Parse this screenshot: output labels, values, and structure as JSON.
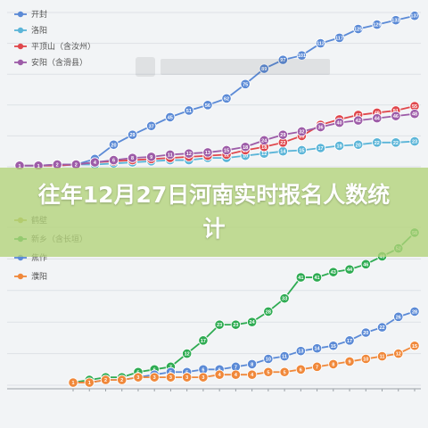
{
  "banner": {
    "title": "往年12月27日河南实时报名人数统计"
  },
  "chart_data": [
    {
      "type": "line",
      "title": "",
      "xlabel": "",
      "ylabel": "",
      "legend": "top-left",
      "grid": true,
      "ylim": [
        0,
        140
      ],
      "x_tick_labels": [],
      "series": [
        {
          "name": "开封",
          "color": "#5b8ad6",
          "labels_visible": true,
          "values": [
            1,
            1,
            2,
            2,
            7,
            20,
            29,
            37,
            45,
            51,
            56,
            62,
            75,
            89,
            97,
            101,
            112,
            117,
            125,
            129,
            133,
            137
          ]
        },
        {
          "name": "洛阳",
          "color": "#5bb5d8",
          "labels_visible": true,
          "values": [
            1,
            1,
            1,
            2,
            2,
            3,
            4,
            5,
            6,
            6,
            8,
            8,
            10,
            12,
            14,
            15,
            17,
            19,
            20,
            22,
            22,
            23
          ]
        },
        {
          "name": "平顶山（含汝州）",
          "color": "#e0474c",
          "labels_visible": true,
          "values": [
            1,
            1,
            1,
            2,
            4,
            5,
            6,
            7,
            8,
            9,
            10,
            11,
            15,
            18,
            22,
            28,
            38,
            43,
            47,
            49,
            51,
            55
          ]
        },
        {
          "name": "安阳（含滑县）",
          "color": "#9d5ca8",
          "labels_visible": true,
          "values": [
            1,
            1,
            2,
            2,
            4,
            6,
            8,
            9,
            11,
            12,
            13,
            15,
            18,
            24,
            29,
            32,
            36,
            40,
            42,
            44,
            46,
            48
          ]
        }
      ]
    },
    {
      "type": "line",
      "title": "",
      "xlabel": "",
      "ylabel": "",
      "legend": "top-left",
      "grid": true,
      "ylim": [
        0,
        60
      ],
      "x_tick_labels": [],
      "series": [
        {
          "name": "鹤壁",
          "color": "#b5b54a",
          "labels_visible": false,
          "values": []
        },
        {
          "name": "新乡（含长垣）",
          "color": "#2eab52",
          "labels_visible": true,
          "values": [
            1,
            2,
            3,
            3,
            5,
            6,
            7,
            12,
            17,
            23,
            23,
            24,
            28,
            33,
            41,
            41,
            43,
            44,
            46,
            49,
            52,
            58
          ]
        },
        {
          "name": "焦作",
          "color": "#5b8ad6",
          "labels_visible": true,
          "values": [
            1,
            1,
            2,
            2,
            3,
            4,
            5,
            5,
            6,
            6,
            7,
            8,
            10,
            11,
            13,
            14,
            15,
            17,
            20,
            22,
            26,
            28
          ]
        },
        {
          "name": "濮阳",
          "color": "#f0883a",
          "labels_visible": true,
          "values": [
            1,
            1,
            2,
            2,
            3,
            3,
            3,
            3,
            3,
            4,
            4,
            4,
            5,
            5,
            6,
            7,
            8,
            9,
            10,
            11,
            12,
            15
          ]
        }
      ]
    }
  ]
}
